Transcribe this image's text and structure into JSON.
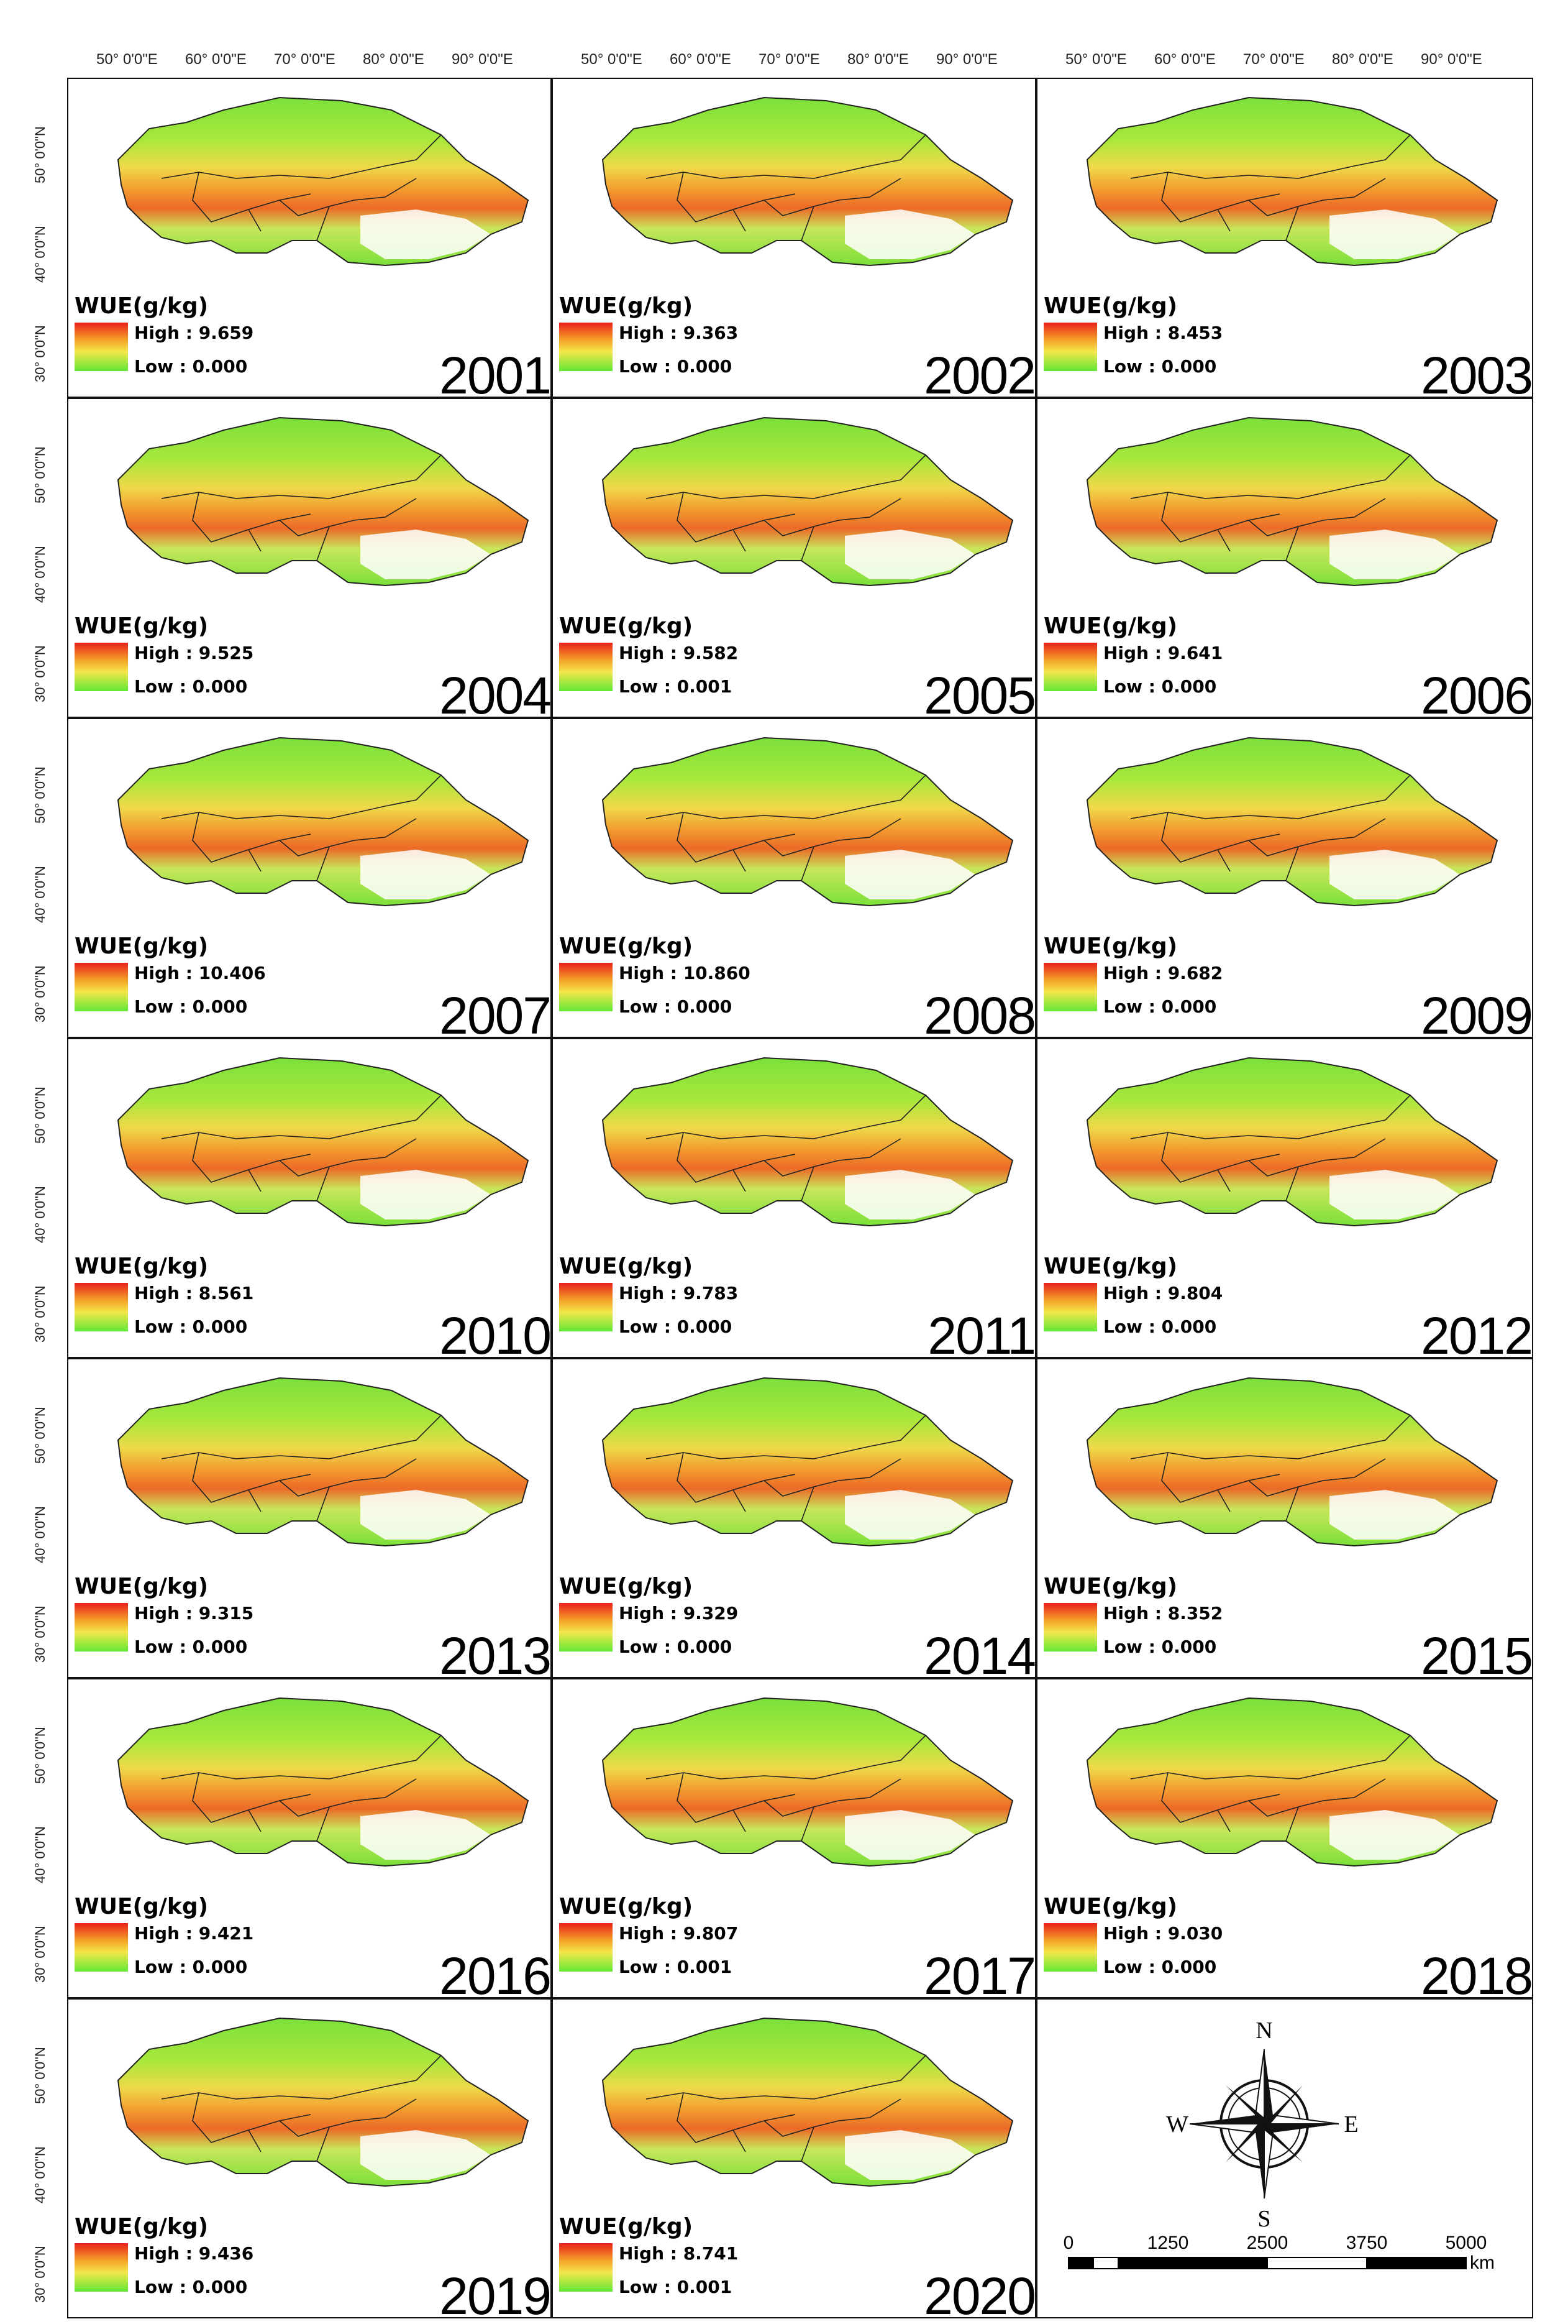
{
  "longitude_labels": [
    "50°  0'0\"E",
    "60°  0'0\"E",
    "70°  0'0\"E",
    "80°  0'0\"E",
    "90°  0'0\"E"
  ],
  "latitude_labels": [
    "50°  0'0\"N",
    "40°  0'0\"N",
    "30°  0'0\"N"
  ],
  "legend_title": "WUE(g/kg)",
  "panels": [
    {
      "year": "2001",
      "high": "High : 9.659",
      "low": "Low : 0.000"
    },
    {
      "year": "2002",
      "high": "High : 9.363",
      "low": "Low : 0.000"
    },
    {
      "year": "2003",
      "high": "High : 8.453",
      "low": "Low : 0.000"
    },
    {
      "year": "2004",
      "high": "High : 9.525",
      "low": "Low : 0.000"
    },
    {
      "year": "2005",
      "high": "High : 9.582",
      "low": "Low : 0.001"
    },
    {
      "year": "2006",
      "high": "High : 9.641",
      "low": "Low : 0.000"
    },
    {
      "year": "2007",
      "high": "High : 10.406",
      "low": "Low : 0.000"
    },
    {
      "year": "2008",
      "high": "High : 10.860",
      "low": "Low : 0.000"
    },
    {
      "year": "2009",
      "high": "High : 9.682",
      "low": "Low : 0.000"
    },
    {
      "year": "2010",
      "high": "High : 8.561",
      "low": "Low : 0.000"
    },
    {
      "year": "2011",
      "high": "High : 9.783",
      "low": "Low : 0.000"
    },
    {
      "year": "2012",
      "high": "High : 9.804",
      "low": "Low : 0.000"
    },
    {
      "year": "2013",
      "high": "High : 9.315",
      "low": "Low : 0.000"
    },
    {
      "year": "2014",
      "high": "High : 9.329",
      "low": "Low : 0.000"
    },
    {
      "year": "2015",
      "high": "High : 8.352",
      "low": "Low : 0.000"
    },
    {
      "year": "2016",
      "high": "High : 9.421",
      "low": "Low : 0.000"
    },
    {
      "year": "2017",
      "high": "High : 9.807",
      "low": "Low : 0.001"
    },
    {
      "year": "2018",
      "high": "High : 9.030",
      "low": "Low : 0.000"
    },
    {
      "year": "2019",
      "high": "High : 9.436",
      "low": "Low : 0.000"
    },
    {
      "year": "2020",
      "high": "High : 8.741",
      "low": "Low : 0.001"
    }
  ],
  "compass": {
    "north": "N",
    "south": "S",
    "east": "E",
    "west": "W"
  },
  "scale_bar": {
    "ticks": [
      "0",
      "1250",
      "2500",
      "3750",
      "5000"
    ],
    "unit": "km"
  },
  "colors": {
    "high": "#e8201c",
    "mid": "#f4a028",
    "yellow": "#f4e64a",
    "low": "#62e836",
    "border": "#222222"
  }
}
